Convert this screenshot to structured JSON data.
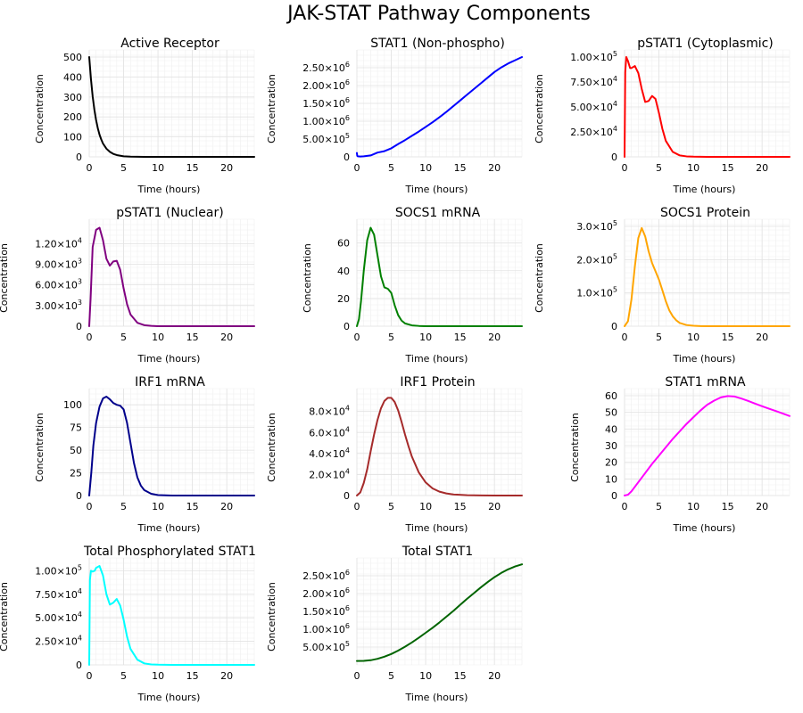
{
  "figure_title": "JAK-STAT Pathway Components",
  "chart_data": [
    {
      "type": "line",
      "title": "Active Receptor",
      "xlabel": "Time (hours)",
      "ylabel": "Concentration",
      "color": "#000000",
      "xlim": [
        0,
        24
      ],
      "ylim": [
        0,
        500
      ],
      "xticks": [
        0,
        5,
        10,
        15,
        20
      ],
      "yticks": [
        {
          "v": 0,
          "l": "0"
        },
        {
          "v": 100,
          "l": "100"
        },
        {
          "v": 200,
          "l": "200"
        },
        {
          "v": 300,
          "l": "300"
        },
        {
          "v": 400,
          "l": "400"
        },
        {
          "v": 500,
          "l": "500"
        }
      ],
      "x": [
        0,
        0.25,
        0.5,
        0.75,
        1,
        1.25,
        1.5,
        1.75,
        2,
        2.5,
        3,
        3.5,
        4,
        5,
        6,
        8,
        12,
        16,
        20,
        24
      ],
      "y": [
        500,
        390,
        303,
        236,
        184,
        143,
        111,
        87,
        67,
        41,
        25,
        15,
        9,
        3,
        1,
        0,
        0,
        0,
        0,
        0
      ]
    },
    {
      "type": "line",
      "title": "STAT1 (Non-phospho)",
      "xlabel": "Time (hours)",
      "ylabel": "Concentration",
      "color": "#0000ff",
      "xlim": [
        0,
        24
      ],
      "ylim": [
        0,
        2800000
      ],
      "xticks": [
        0,
        5,
        10,
        15,
        20
      ],
      "yticks": [
        {
          "v": 0,
          "l": "0"
        },
        {
          "v": 500000,
          "l": "5.00×10",
          "e": "5"
        },
        {
          "v": 1000000,
          "l": "1.00×10",
          "e": "6"
        },
        {
          "v": 1500000,
          "l": "1.50×10",
          "e": "6"
        },
        {
          "v": 2000000,
          "l": "2.00×10",
          "e": "6"
        },
        {
          "v": 2500000,
          "l": "2.50×10",
          "e": "6"
        }
      ],
      "x": [
        0,
        0.05,
        0.15,
        0.5,
        1,
        2,
        3,
        4,
        5,
        6,
        7,
        8,
        9,
        10,
        11,
        12,
        13,
        14,
        15,
        16,
        17,
        18,
        19,
        20,
        21,
        22,
        23,
        24
      ],
      "y": [
        110000,
        30000,
        15000,
        10000,
        15000,
        40000,
        120000,
        160000,
        240000,
        360000,
        470000,
        590000,
        710000,
        840000,
        970000,
        1110000,
        1260000,
        1420000,
        1580000,
        1740000,
        1900000,
        2060000,
        2220000,
        2380000,
        2510000,
        2620000,
        2710000,
        2800000
      ]
    },
    {
      "type": "line",
      "title": "pSTAT1 (Cytoplasmic)",
      "xlabel": "Time (hours)",
      "ylabel": "Concentration",
      "color": "#ff0000",
      "xlim": [
        0,
        24
      ],
      "ylim": [
        0,
        100000
      ],
      "xticks": [
        0,
        5,
        10,
        15,
        20
      ],
      "yticks": [
        {
          "v": 0,
          "l": "0"
        },
        {
          "v": 25000,
          "l": "2.50×10",
          "e": "4"
        },
        {
          "v": 50000,
          "l": "5.00×10",
          "e": "4"
        },
        {
          "v": 75000,
          "l": "7.50×10",
          "e": "4"
        },
        {
          "v": 100000,
          "l": "1.00×10",
          "e": "5"
        }
      ],
      "x": [
        0,
        0.1,
        0.25,
        0.5,
        0.8,
        1,
        1.5,
        2,
        2.5,
        3,
        3.5,
        4,
        4.5,
        5,
        5.5,
        6,
        7,
        8,
        9,
        10,
        12,
        16,
        20,
        24
      ],
      "y": [
        0,
        85000,
        100000,
        96000,
        89000,
        89000,
        91000,
        84000,
        68000,
        55000,
        56000,
        61000,
        58000,
        44000,
        28000,
        16000,
        5000,
        1500,
        500,
        200,
        0,
        0,
        0,
        0
      ]
    },
    {
      "type": "line",
      "title": "pSTAT1 (Nuclear)",
      "xlabel": "Time (hours)",
      "ylabel": "Concentration",
      "color": "#800080",
      "xlim": [
        0,
        24
      ],
      "ylim": [
        0,
        14500
      ],
      "xticks": [
        0,
        5,
        10,
        15,
        20
      ],
      "yticks": [
        {
          "v": 0,
          "l": "0"
        },
        {
          "v": 3000,
          "l": "3.00×10",
          "e": "3"
        },
        {
          "v": 6000,
          "l": "6.00×10",
          "e": "3"
        },
        {
          "v": 9000,
          "l": "9.00×10",
          "e": "3"
        },
        {
          "v": 12000,
          "l": "1.20×10",
          "e": "4"
        }
      ],
      "x": [
        0,
        0.2,
        0.5,
        1,
        1.5,
        2,
        2.5,
        3,
        3.5,
        4,
        4.5,
        5,
        5.5,
        6,
        7,
        8,
        9,
        10,
        12,
        16,
        20,
        24
      ],
      "y": [
        0,
        4000,
        11500,
        14000,
        14300,
        12500,
        9800,
        8800,
        9400,
        9500,
        8200,
        5500,
        3200,
        1700,
        500,
        150,
        50,
        0,
        0,
        0,
        0,
        0
      ]
    },
    {
      "type": "line",
      "title": "SOCS1 mRNA",
      "xlabel": "Time (hours)",
      "ylabel": "Concentration",
      "color": "#008000",
      "xlim": [
        0,
        24
      ],
      "ylim": [
        0,
        72
      ],
      "xticks": [
        0,
        5,
        10,
        15,
        20
      ],
      "yticks": [
        {
          "v": 0,
          "l": "0"
        },
        {
          "v": 20,
          "l": "20"
        },
        {
          "v": 40,
          "l": "40"
        },
        {
          "v": 60,
          "l": "60"
        }
      ],
      "x": [
        0,
        0.3,
        0.6,
        1,
        1.5,
        2,
        2.5,
        3,
        3.5,
        4,
        4.5,
        5,
        5.5,
        6,
        6.5,
        7,
        8,
        9,
        10,
        12,
        16,
        20,
        24
      ],
      "y": [
        0,
        5,
        18,
        40,
        62,
        71,
        66,
        51,
        36,
        28,
        27,
        24,
        15,
        8,
        4,
        2,
        0.6,
        0.2,
        0,
        0,
        0,
        0,
        0
      ]
    },
    {
      "type": "line",
      "title": "SOCS1 Protein",
      "xlabel": "Time (hours)",
      "ylabel": "Concentration",
      "color": "#ffa500",
      "xlim": [
        0,
        24
      ],
      "ylim": [
        0,
        300000
      ],
      "xticks": [
        0,
        5,
        10,
        15,
        20
      ],
      "yticks": [
        {
          "v": 0,
          "l": "0"
        },
        {
          "v": 100000,
          "l": "1.0×10",
          "e": "5"
        },
        {
          "v": 200000,
          "l": "2.0×10",
          "e": "5"
        },
        {
          "v": 300000,
          "l": "3.0×10",
          "e": "5"
        }
      ],
      "x": [
        0,
        0.5,
        1,
        1.5,
        2,
        2.5,
        3,
        3.5,
        4,
        4.5,
        5,
        5.5,
        6,
        6.5,
        7,
        7.5,
        8,
        9,
        10,
        11,
        12,
        14,
        16,
        20,
        24
      ],
      "y": [
        0,
        15000,
        80000,
        180000,
        265000,
        295000,
        270000,
        225000,
        190000,
        165000,
        140000,
        108000,
        75000,
        48000,
        30000,
        18000,
        10000,
        3500,
        1200,
        400,
        100,
        0,
        0,
        0,
        0
      ]
    },
    {
      "type": "line",
      "title": "IRF1 mRNA",
      "xlabel": "Time (hours)",
      "ylabel": "Concentration",
      "color": "#00008b",
      "xlim": [
        0,
        24
      ],
      "ylim": [
        0,
        110
      ],
      "xticks": [
        0,
        5,
        10,
        15,
        20
      ],
      "yticks": [
        {
          "v": 0,
          "l": "0"
        },
        {
          "v": 25,
          "l": "25"
        },
        {
          "v": 50,
          "l": "50"
        },
        {
          "v": 75,
          "l": "75"
        },
        {
          "v": 100,
          "l": "100"
        }
      ],
      "x": [
        0,
        0.3,
        0.6,
        1,
        1.5,
        2,
        2.5,
        3,
        3.5,
        4,
        4.5,
        5,
        5.5,
        6,
        6.5,
        7,
        7.5,
        8,
        9,
        10,
        12,
        16,
        20,
        24
      ],
      "y": [
        0,
        25,
        55,
        80,
        98,
        107,
        109,
        106,
        102,
        100,
        99,
        95,
        80,
        58,
        36,
        20,
        11,
        6,
        2,
        0.5,
        0,
        0,
        0,
        0
      ]
    },
    {
      "type": "line",
      "title": "IRF1 Protein",
      "xlabel": "Time (hours)",
      "ylabel": "Concentration",
      "color": "#a52a2a",
      "xlim": [
        0,
        24
      ],
      "ylim": [
        0,
        95000
      ],
      "xticks": [
        0,
        5,
        10,
        15,
        20
      ],
      "yticks": [
        {
          "v": 0,
          "l": "0"
        },
        {
          "v": 20000,
          "l": "2.0×10",
          "e": "4"
        },
        {
          "v": 40000,
          "l": "4.0×10",
          "e": "4"
        },
        {
          "v": 60000,
          "l": "6.0×10",
          "e": "4"
        },
        {
          "v": 80000,
          "l": "8.0×10",
          "e": "4"
        }
      ],
      "x": [
        0,
        0.5,
        1,
        1.5,
        2,
        2.5,
        3,
        3.5,
        4,
        4.5,
        5,
        5.5,
        6,
        6.5,
        7,
        7.5,
        8,
        9,
        10,
        11,
        12,
        13,
        14,
        16,
        18,
        20,
        22,
        24
      ],
      "y": [
        0,
        3000,
        12000,
        25000,
        42000,
        58000,
        72000,
        83000,
        90000,
        93000,
        93000,
        89000,
        81000,
        70000,
        58000,
        47000,
        37000,
        22000,
        12500,
        6800,
        3700,
        2000,
        1100,
        300,
        100,
        0,
        0,
        0
      ]
    },
    {
      "type": "line",
      "title": "STAT1 mRNA",
      "xlabel": "Time (hours)",
      "ylabel": "Concentration",
      "color": "#ff00ff",
      "xlim": [
        0,
        24
      ],
      "ylim": [
        0,
        60
      ],
      "xticks": [
        0,
        5,
        10,
        15,
        20
      ],
      "yticks": [
        {
          "v": 0,
          "l": "0"
        },
        {
          "v": 10,
          "l": "10"
        },
        {
          "v": 20,
          "l": "20"
        },
        {
          "v": 30,
          "l": "30"
        },
        {
          "v": 40,
          "l": "40"
        },
        {
          "v": 50,
          "l": "50"
        },
        {
          "v": 60,
          "l": "60"
        }
      ],
      "x": [
        0,
        0.5,
        1,
        2,
        3,
        4,
        5,
        6,
        7,
        8,
        9,
        10,
        11,
        12,
        13,
        14,
        15,
        16,
        17,
        18,
        19,
        20,
        21,
        22,
        23,
        24
      ],
      "y": [
        0,
        0.5,
        2.5,
        8,
        13.5,
        19,
        24,
        29,
        34,
        38.5,
        43,
        47,
        51,
        54.5,
        57,
        59,
        59.8,
        59.5,
        58.3,
        56.8,
        55.2,
        53.7,
        52.2,
        50.8,
        49.3,
        47.8
      ]
    },
    {
      "type": "line",
      "title": "Total Phosphorylated STAT1",
      "xlabel": "Time (hours)",
      "ylabel": "Concentration",
      "color": "#00ffff",
      "xlim": [
        0,
        24
      ],
      "ylim": [
        0,
        106000
      ],
      "xticks": [
        0,
        5,
        10,
        15,
        20
      ],
      "yticks": [
        {
          "v": 0,
          "l": "0"
        },
        {
          "v": 25000,
          "l": "2.50×10",
          "e": "4"
        },
        {
          "v": 50000,
          "l": "5.00×10",
          "e": "4"
        },
        {
          "v": 75000,
          "l": "7.50×10",
          "e": "4"
        },
        {
          "v": 100000,
          "l": "1.00×10",
          "e": "5"
        }
      ],
      "x": [
        0,
        0.1,
        0.25,
        0.5,
        0.8,
        1,
        1.5,
        2,
        2.5,
        3,
        3.5,
        4,
        4.5,
        5,
        5.5,
        6,
        7,
        8,
        9,
        10,
        12,
        16,
        20,
        24
      ],
      "y": [
        0,
        90000,
        100000,
        99000,
        100000,
        103000,
        105000,
        95000,
        75000,
        64000,
        66000,
        70000,
        63000,
        48000,
        30000,
        17000,
        5500,
        1600,
        500,
        200,
        0,
        0,
        0,
        0
      ]
    },
    {
      "type": "line",
      "title": "Total STAT1",
      "xlabel": "Time (hours)",
      "ylabel": "Concentration",
      "color": "#006400",
      "xlim": [
        0,
        24
      ],
      "ylim": [
        0,
        2800000
      ],
      "xticks": [
        0,
        5,
        10,
        15,
        20
      ],
      "yticks": [
        {
          "v": 500000,
          "l": "5.00×10",
          "e": "5"
        },
        {
          "v": 1000000,
          "l": "1.00×10",
          "e": "6"
        },
        {
          "v": 1500000,
          "l": "1.50×10",
          "e": "6"
        },
        {
          "v": 2000000,
          "l": "2.00×10",
          "e": "6"
        },
        {
          "v": 2500000,
          "l": "2.50×10",
          "e": "6"
        }
      ],
      "x": [
        0,
        1,
        2,
        3,
        4,
        5,
        6,
        7,
        8,
        9,
        10,
        11,
        12,
        13,
        14,
        15,
        16,
        17,
        18,
        19,
        20,
        21,
        22,
        23,
        24
      ],
      "y": [
        110000,
        112000,
        130000,
        170000,
        230000,
        305000,
        400000,
        510000,
        630000,
        760000,
        900000,
        1040000,
        1190000,
        1350000,
        1510000,
        1680000,
        1850000,
        2010000,
        2170000,
        2320000,
        2460000,
        2580000,
        2680000,
        2760000,
        2820000
      ]
    }
  ]
}
